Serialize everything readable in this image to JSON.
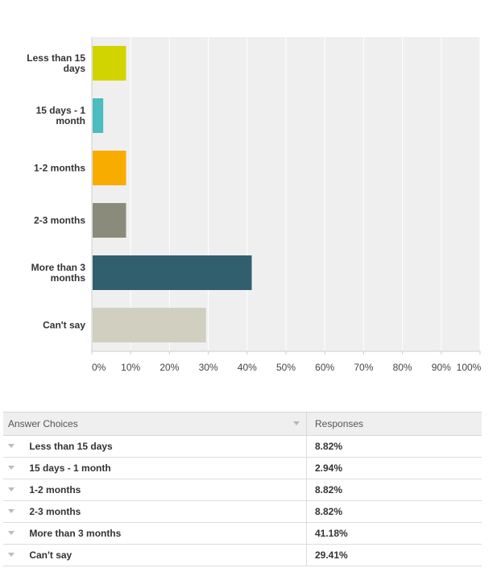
{
  "chart_data": {
    "type": "bar",
    "orientation": "horizontal",
    "categories": [
      "Less than 15 days",
      "15 days - 1 month",
      "1-2 months",
      "2-3 months",
      "More than 3 months",
      "Can't say"
    ],
    "category_label_lines": [
      [
        "Less than 15",
        "days"
      ],
      [
        "15 days - 1",
        "month"
      ],
      [
        "1-2 months"
      ],
      [
        "2-3 months"
      ],
      [
        "More than 3",
        "months"
      ],
      [
        "Can't say"
      ]
    ],
    "values": [
      8.82,
      2.94,
      8.82,
      8.82,
      41.18,
      29.41
    ],
    "colors": [
      "#d2d400",
      "#4bbcc0",
      "#f9ac00",
      "#8a8b7a",
      "#325f6e",
      "#d1d0c0"
    ],
    "xlim": [
      0,
      100
    ],
    "ticks": [
      0,
      10,
      20,
      30,
      40,
      50,
      60,
      70,
      80,
      90,
      100
    ],
    "tick_labels": [
      "0%",
      "10%",
      "20%",
      "30%",
      "40%",
      "50%",
      "60%",
      "70%",
      "80%",
      "90%",
      "100%"
    ],
    "grid": true,
    "plot_background": "#efefef",
    "title": "",
    "xlabel": "",
    "ylabel": ""
  },
  "table": {
    "headers": {
      "choice": "Answer Choices",
      "responses": "Responses"
    },
    "rows": [
      {
        "choice": "Less than 15 days",
        "responses": "8.82%"
      },
      {
        "choice": "15 days - 1 month",
        "responses": "2.94%"
      },
      {
        "choice": "1-2 months",
        "responses": "8.82%"
      },
      {
        "choice": "2-3 months",
        "responses": "8.82%"
      },
      {
        "choice": "More than 3 months",
        "responses": "41.18%"
      },
      {
        "choice": "Can't say",
        "responses": "29.41%"
      }
    ]
  }
}
